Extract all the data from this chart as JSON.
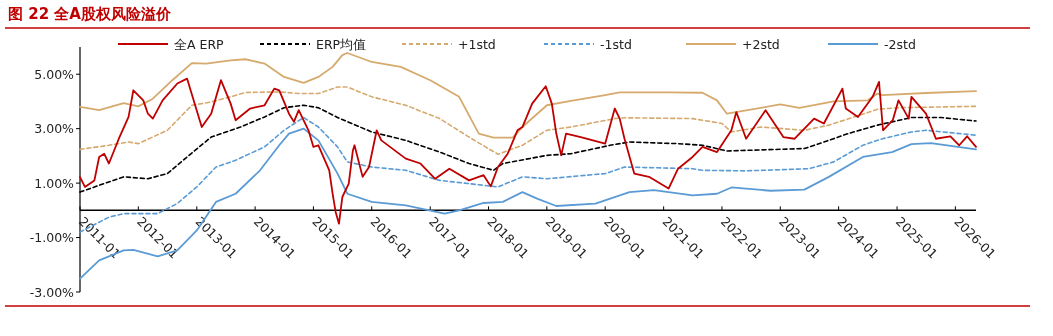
{
  "chart_data": {
    "type": "line",
    "title": "图 22 全A股权风险溢价",
    "legend": "top",
    "grid": false,
    "xlim": [
      "2011-01",
      "2026-05-10"
    ],
    "ylim": [
      -3,
      6
    ],
    "yticks": [
      {
        "value": -3,
        "label": "-3.00%"
      },
      {
        "value": -1,
        "label": "-1.00%"
      },
      {
        "value": 1,
        "label": "1.00%"
      },
      {
        "value": 3,
        "label": "3.00%"
      },
      {
        "value": 5,
        "label": "5.00%"
      }
    ],
    "xticks": [
      "2011-01",
      "2012-01",
      "2013-01",
      "2014-01",
      "2015-01",
      "2016-01",
      "2017-01",
      "2018-01",
      "2019-01",
      "2020-01",
      "2021-01",
      "2022-01",
      "2023-01",
      "2024-01",
      "2025-01",
      "2026-01"
    ],
    "series": [
      {
        "name": "全A ERP",
        "color": "#c00000",
        "line_style": "solid",
        "x": [
          "2011-01",
          "2011-02",
          "2011-04",
          "2011-05",
          "2011-06",
          "2011-07",
          "2011-09",
          "2011-11",
          "2011-12",
          "2012-02",
          "2012-03",
          "2012-04",
          "2012-06",
          "2012-09",
          "2012-11",
          "2013-02",
          "2013-04",
          "2013-06",
          "2013-08",
          "2013-09",
          "2013-12",
          "2014-03",
          "2014-05",
          "2014-06",
          "2014-08",
          "2014-09",
          "2014-10",
          "2014-12",
          "2015-01",
          "2015-02",
          "2015-04-10",
          "2015-05-01",
          "2015-05-20",
          "2015-06-10",
          "2015-07-01",
          "2015-08-10",
          "2015-09-05",
          "2015-09-15",
          "2015-11-05",
          "2015-12-15",
          "2016-02",
          "2016-03",
          "2016-08",
          "2016-11",
          "2017-02",
          "2017-05",
          "2017-09",
          "2017-12",
          "2018-01-15",
          "2018-03",
          "2018-05",
          "2018-07",
          "2018-08",
          "2018-10",
          "2018-12-25",
          "2019-02",
          "2019-03",
          "2019-04",
          "2019-05",
          "2019-08",
          "2020-01",
          "2020-03",
          "2020-04",
          "2020-05",
          "2020-07",
          "2020-10",
          "2021-02",
          "2021-04",
          "2021-07",
          "2021-09",
          "2021-12",
          "2022-02",
          "2022-03",
          "2022-04",
          "2022-06",
          "2022-10",
          "2023-01-20",
          "2023-04",
          "2023-08",
          "2023-10",
          "2024-01-25",
          "2024-02-15",
          "2024-05",
          "2024-08-01",
          "2024-09-10",
          "2024-10-05",
          "2024-12-05",
          "2025-01-10",
          "2025-03-15",
          "2025-04-01",
          "2025-07",
          "2025-09",
          "2025-12",
          "2026-01-25",
          "2026-03-15",
          "2026-05-10"
        ],
        "values": [
          1.22,
          0.86,
          1.1,
          1.96,
          2.08,
          1.72,
          2.63,
          3.43,
          4.41,
          4.04,
          3.55,
          3.37,
          4.04,
          4.66,
          4.84,
          3.06,
          3.55,
          4.78,
          3.92,
          3.31,
          3.74,
          3.86,
          4.47,
          4.41,
          3.55,
          3.25,
          3.68,
          2.94,
          2.33,
          2.39,
          1.47,
          0.61,
          -0.06,
          -0.49,
          0.49,
          0.98,
          2.2,
          2.39,
          1.23,
          1.59,
          2.94,
          2.57,
          1.9,
          1.72,
          1.16,
          1.53,
          1.1,
          1.29,
          0.88,
          1.59,
          2.08,
          2.94,
          3.06,
          3.92,
          4.56,
          3.92,
          2.82,
          2.02,
          2.82,
          2.69,
          2.45,
          3.74,
          3.37,
          2.63,
          1.35,
          1.23,
          0.8,
          1.53,
          1.96,
          2.33,
          2.14,
          2.69,
          2.94,
          3.61,
          2.63,
          3.68,
          2.69,
          2.63,
          3.37,
          3.19,
          4.47,
          3.74,
          3.43,
          4.17,
          4.72,
          2.94,
          3.31,
          4.04,
          3.37,
          4.17,
          3.55,
          2.63,
          2.72,
          2.39,
          2.72,
          2.33
        ]
      },
      {
        "name": "ERP均值",
        "color": "#000000",
        "line_style": "dashed",
        "x": [
          "2011-01",
          "2011-05",
          "2011-10",
          "2012-03",
          "2012-07",
          "2012-11",
          "2013-04",
          "2013-10",
          "2014-03",
          "2014-07",
          "2014-11",
          "2015-02",
          "2015-06",
          "2016-01",
          "2016-08",
          "2017-03",
          "2017-09",
          "2018-02",
          "2018-04",
          "2019-01",
          "2019-06",
          "2020-02",
          "2020-06",
          "2021-04",
          "2021-09",
          "2022-02",
          "2023-06",
          "2023-10",
          "2024-03",
          "2024-09",
          "2025-04",
          "2025-10",
          "2026-05-10"
        ],
        "values": [
          0.67,
          0.92,
          1.23,
          1.16,
          1.35,
          1.96,
          2.69,
          3.06,
          3.43,
          3.77,
          3.86,
          3.77,
          3.41,
          2.88,
          2.57,
          2.14,
          1.72,
          1.47,
          1.72,
          2.02,
          2.08,
          2.39,
          2.51,
          2.45,
          2.39,
          2.18,
          2.27,
          2.51,
          2.82,
          3.13,
          3.41,
          3.41,
          3.28
        ]
      },
      {
        "name": "+1std",
        "color": "#d6aa6e",
        "line_style": "dashed",
        "x": [
          "2011-01",
          "2011-07",
          "2011-11",
          "2012-01",
          "2012-07",
          "2012-12",
          "2013-04",
          "2013-08",
          "2013-11",
          "2014-06",
          "2014-10",
          "2015-02",
          "2015-06",
          "2015-08",
          "2016-01",
          "2016-08",
          "2017-03",
          "2017-09",
          "2018-03",
          "2018-08",
          "2019-01",
          "2019-06",
          "2020-03",
          "2020-05",
          "2021-07",
          "2022-01",
          "2022-03",
          "2022-09",
          "2023-06",
          "2023-11",
          "2024-09",
          "2025-01",
          "2026-05-10"
        ],
        "values": [
          2.24,
          2.39,
          2.51,
          2.45,
          2.94,
          3.86,
          3.98,
          4.17,
          4.33,
          4.35,
          4.29,
          4.29,
          4.53,
          4.53,
          4.17,
          3.86,
          3.37,
          2.69,
          2.06,
          2.39,
          2.94,
          3.06,
          3.37,
          3.4,
          3.37,
          3.19,
          2.88,
          3.06,
          2.94,
          3.13,
          3.71,
          3.77,
          3.82
        ]
      },
      {
        "name": "-1std",
        "color": "#5b9bd5",
        "line_style": "dashed",
        "x": [
          "2011-01",
          "2011-07",
          "2011-10",
          "2012-05",
          "2012-09",
          "2013-01",
          "2013-05",
          "2013-09",
          "2014-03",
          "2014-07",
          "2014-11",
          "2015-02",
          "2015-06",
          "2015-08",
          "2016-01",
          "2016-08",
          "2017-03",
          "2017-09",
          "2018-03",
          "2018-08",
          "2019-01",
          "2020-01",
          "2020-05",
          "2021-07",
          "2021-09",
          "2022-06",
          "2023-07",
          "2023-12",
          "2024-06",
          "2024-10",
          "2025-04",
          "2025-07",
          "2026-05-10"
        ],
        "values": [
          -0.8,
          -0.25,
          -0.12,
          -0.12,
          0.25,
          0.86,
          1.59,
          1.84,
          2.33,
          2.94,
          3.41,
          3.06,
          2.33,
          1.78,
          1.59,
          1.47,
          1.1,
          0.98,
          0.86,
          1.23,
          1.16,
          1.35,
          1.59,
          1.53,
          1.47,
          1.45,
          1.53,
          1.78,
          2.39,
          2.63,
          2.88,
          2.94,
          2.76
        ]
      },
      {
        "name": "+2std",
        "color": "#d6aa6e",
        "line_style": "solid",
        "x": [
          "2011-01",
          "2011-05",
          "2011-10",
          "2012-01",
          "2012-04",
          "2012-08",
          "2012-12",
          "2013-03",
          "2013-08",
          "2013-11",
          "2014-03",
          "2014-07",
          "2014-11",
          "2015-02",
          "2015-05",
          "2015-07",
          "2015-08",
          "2016-01",
          "2016-07",
          "2017-01",
          "2017-07",
          "2017-11",
          "2018-02",
          "2018-06",
          "2018-08",
          "2019-01",
          "2019-06",
          "2020-01",
          "2020-04",
          "2021-02",
          "2021-09",
          "2021-12",
          "2022-02",
          "2022-06",
          "2023-01",
          "2023-05",
          "2023-12",
          "2024-07",
          "2024-09",
          "2024-10",
          "2025-07",
          "2026-05-10"
        ],
        "values": [
          3.8,
          3.68,
          3.94,
          3.82,
          4.1,
          4.78,
          5.41,
          5.39,
          5.51,
          5.55,
          5.39,
          4.9,
          4.68,
          4.9,
          5.27,
          5.7,
          5.78,
          5.45,
          5.27,
          4.78,
          4.17,
          2.82,
          2.67,
          2.67,
          3.06,
          3.86,
          4.02,
          4.23,
          4.33,
          4.33,
          4.32,
          4.04,
          3.55,
          3.67,
          3.89,
          3.76,
          4.0,
          4.04,
          4.29,
          4.23,
          4.31,
          4.38
        ]
      },
      {
        "name": "-2std",
        "color": "#5b9bd5",
        "line_style": "solid",
        "x": [
          "2011-01",
          "2011-05",
          "2011-10",
          "2011-12",
          "2012-05",
          "2012-09",
          "2013-01",
          "2013-05",
          "2013-09",
          "2014-02",
          "2014-06",
          "2014-08",
          "2014-11",
          "2015-02",
          "2015-06",
          "2015-08",
          "2016-01",
          "2016-08",
          "2017-04",
          "2017-07",
          "2017-12",
          "2018-04",
          "2018-08",
          "2018-11",
          "2019-03",
          "2019-11",
          "2020-06",
          "2020-11",
          "2021-07",
          "2021-12",
          "2022-03",
          "2022-11",
          "2023-06",
          "2023-11",
          "2024-06",
          "2024-12",
          "2025-04",
          "2025-08",
          "2026-05-10"
        ],
        "values": [
          -2.51,
          -1.84,
          -1.47,
          -1.45,
          -1.69,
          -1.47,
          -0.74,
          0.31,
          0.61,
          1.47,
          2.39,
          2.82,
          3.0,
          2.57,
          1.35,
          0.61,
          0.31,
          0.18,
          -0.12,
          0.0,
          0.27,
          0.31,
          0.67,
          0.43,
          0.16,
          0.25,
          0.67,
          0.74,
          0.55,
          0.61,
          0.84,
          0.72,
          0.76,
          1.23,
          1.96,
          2.14,
          2.43,
          2.47,
          2.24
        ]
      }
    ]
  }
}
